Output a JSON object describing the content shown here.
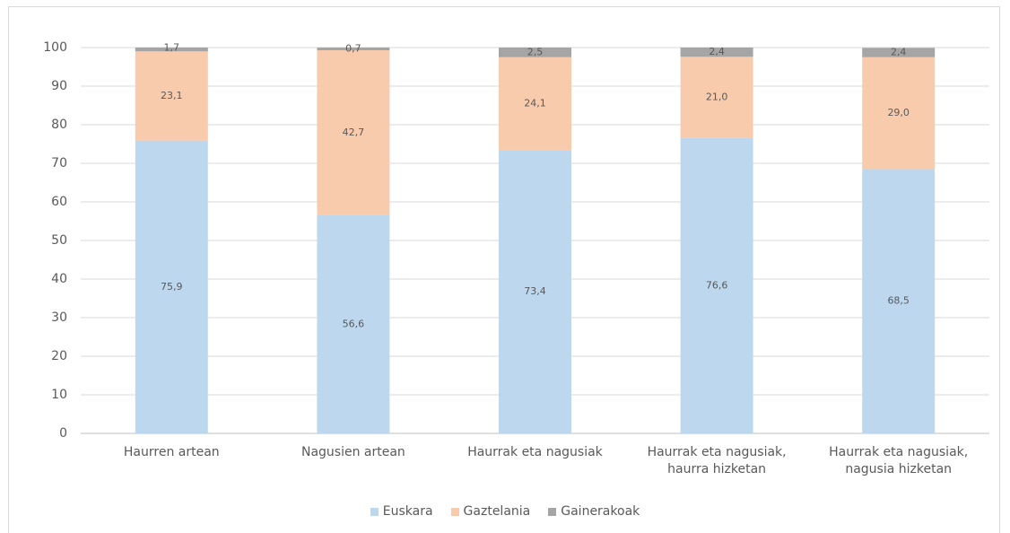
{
  "chart_data": {
    "type": "stacked_bar",
    "categories": [
      "Haurren artean",
      "Nagusien artean",
      "Haurrak eta nagusiak",
      "Haurrak eta nagusiak, haurra hizketan",
      "Haurrak eta nagusiak, nagusia hizketan"
    ],
    "series": [
      {
        "name": "Euskara",
        "color": "#bdd7ee",
        "values": [
          75.9,
          56.6,
          73.4,
          76.6,
          68.5
        ],
        "value_labels": [
          "75,9",
          "56,6",
          "73,4",
          "76,6",
          "68,5"
        ]
      },
      {
        "name": "Gaztelania",
        "color": "#f8cbad",
        "values": [
          23.1,
          42.7,
          24.1,
          21.0,
          29.0
        ],
        "value_labels": [
          "23,1",
          "42,7",
          "24,1",
          "21,0",
          "29,0"
        ]
      },
      {
        "name": "Gainerakoak",
        "color": "#a5a5a5",
        "values": [
          1.7,
          0.7,
          2.5,
          2.4,
          2.4
        ],
        "value_labels": [
          "1,7",
          "0,7",
          "2,5",
          "2,4",
          "2,4"
        ]
      }
    ],
    "ylim": [
      0,
      100
    ],
    "yticks": [
      0,
      10,
      20,
      30,
      40,
      50,
      60,
      70,
      80,
      90,
      100
    ],
    "grid": true,
    "legend": "bottom"
  }
}
